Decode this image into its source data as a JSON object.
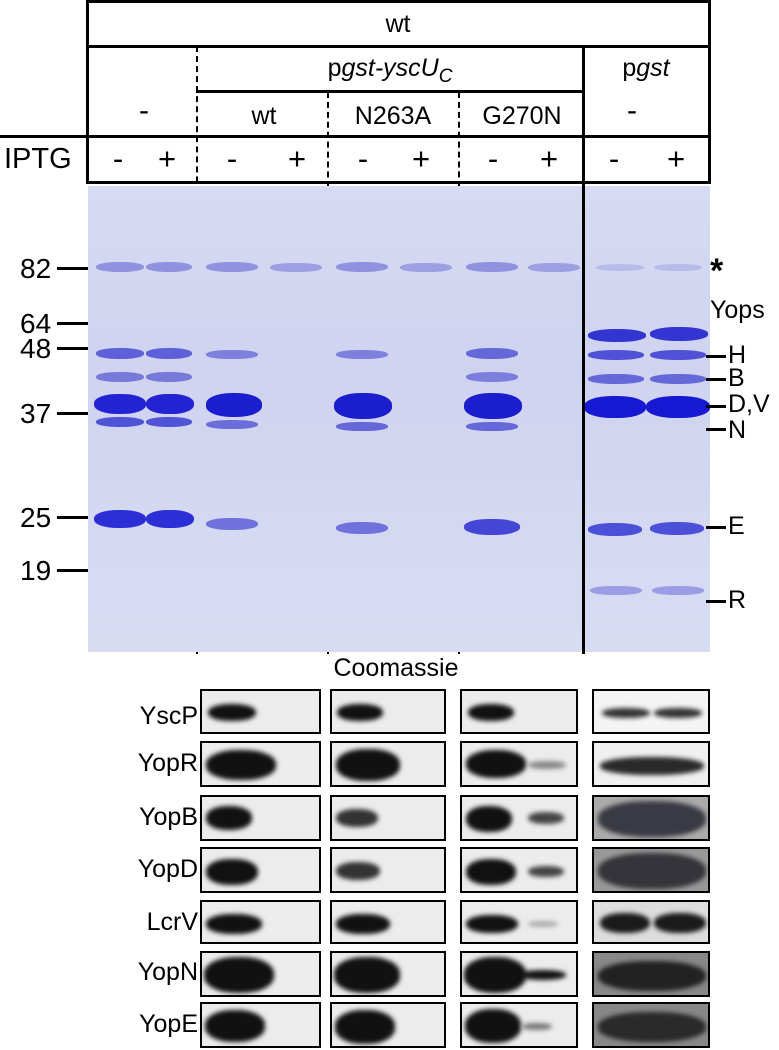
{
  "header": {
    "strain": "wt",
    "plasmid_main_prefix": "p",
    "plasmid_main_italic": "gst-yscU",
    "plasmid_main_sub": "C",
    "plasmid_ctrl_prefix": "p",
    "plasmid_ctrl_italic": "gst",
    "no_plasmid": "-",
    "variants": [
      "wt",
      "N263A",
      "G270N"
    ],
    "ctrl_variant": "-",
    "iptg_label": "IPTG",
    "iptg_states": [
      "-",
      "+",
      "-",
      "+",
      "-",
      "+",
      "-",
      "+",
      "-",
      "+"
    ]
  },
  "gel": {
    "markers": [
      "82",
      "64",
      "48",
      "37",
      "25",
      "19"
    ],
    "bands_right": [
      "*",
      "Yops",
      "H",
      "B",
      "D,V",
      "N",
      "E",
      "R"
    ],
    "caption": "Coomassie",
    "colors": {
      "band": "#2a2bd8",
      "background": "#d2d6f0"
    }
  },
  "western": {
    "proteins": [
      "YscP",
      "YopR",
      "YopB",
      "YopD",
      "LcrV",
      "YopN",
      "YopE"
    ]
  }
}
